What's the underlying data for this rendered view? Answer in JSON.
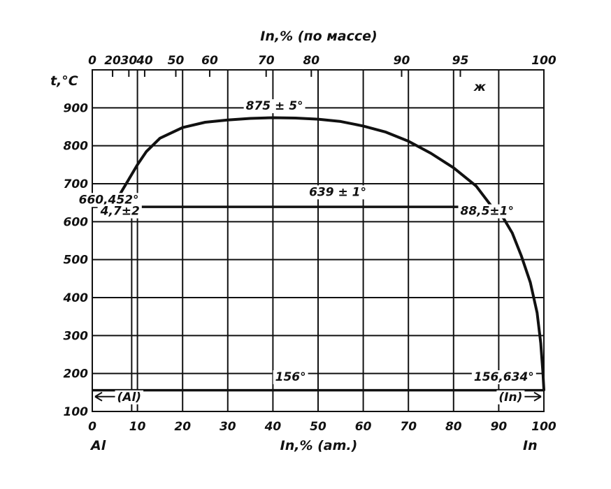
{
  "chart_data": {
    "type": "line",
    "title": "",
    "xlabel": "In,% (am.)",
    "x2label": "In,% (по массе)",
    "ylabel": "t,°C",
    "x_left_end_label": "Al",
    "x_right_end_label": "In",
    "xlim": [
      0,
      100
    ],
    "ylim": [
      100,
      1000
    ],
    "grid": true,
    "x_ticks": [
      "0",
      "10",
      "20",
      "30",
      "40",
      "50",
      "60",
      "70",
      "80",
      "90",
      "100"
    ],
    "y_ticks": [
      "100",
      "200",
      "300",
      "400",
      "500",
      "600",
      "700",
      "800",
      "900"
    ],
    "top_ticks": [
      {
        "label": "0",
        "at": 0
      },
      {
        "label": "20",
        "at": 4.5
      },
      {
        "label": "30",
        "at": 8.1
      },
      {
        "label": "40",
        "at": 11.6
      },
      {
        "label": "50",
        "at": 18.5
      },
      {
        "label": "60",
        "at": 26
      },
      {
        "label": "70",
        "at": 38.5
      },
      {
        "label": "80",
        "at": 48.5
      },
      {
        "label": "90",
        "at": 68.5
      },
      {
        "label": "95",
        "at": 81.5
      },
      {
        "label": "100",
        "at": 100
      }
    ],
    "series": [
      {
        "values_xy": [
          [
            0,
            660.452
          ],
          [
            4.7,
            639
          ]
        ]
      },
      {
        "values_xy": [
          [
            4.7,
            639
          ],
          [
            6,
            670
          ],
          [
            8,
            710
          ],
          [
            10,
            750
          ],
          [
            12,
            785
          ],
          [
            15,
            820
          ],
          [
            20,
            848
          ],
          [
            25,
            862
          ],
          [
            30,
            868
          ],
          [
            35,
            872
          ],
          [
            40,
            874
          ],
          [
            45,
            873
          ],
          [
            50,
            870
          ],
          [
            55,
            864
          ],
          [
            60,
            852
          ],
          [
            65,
            836
          ],
          [
            70,
            812
          ],
          [
            75,
            780
          ],
          [
            80,
            742
          ],
          [
            85,
            694
          ],
          [
            88.5,
            639
          ]
        ]
      },
      {
        "values_xy": [
          [
            88.5,
            639
          ],
          [
            91,
            610
          ],
          [
            93,
            570
          ],
          [
            95,
            510
          ],
          [
            97,
            440
          ],
          [
            98.5,
            360
          ],
          [
            99.3,
            280
          ],
          [
            99.8,
            200
          ],
          [
            100,
            156.634
          ]
        ]
      }
    ],
    "horizontal_lines": [
      {
        "y": 639,
        "x_from": 0,
        "x_to": 91
      },
      {
        "y": 156,
        "x_from": 0,
        "x_to": 100
      }
    ],
    "annotations": [
      {
        "text": "875 ± 5°",
        "x": 34,
        "y": 895
      },
      {
        "text": "639 ± 1°",
        "x": 48,
        "y": 668
      },
      {
        "text": "660,452°",
        "x": -3,
        "y": 648
      },
      {
        "text": "4,7±2",
        "x": 1.8,
        "y": 618
      },
      {
        "text": "88,5±1°",
        "x": 81.5,
        "y": 618
      },
      {
        "text": "156°",
        "x": 40.5,
        "y": 181
      },
      {
        "text": "156,634°",
        "x": 84.5,
        "y": 181
      },
      {
        "text": "(Al)",
        "x": 5.5,
        "y": 128
      },
      {
        "text": "(In)",
        "x": 90,
        "y": 128
      },
      {
        "text": "ж",
        "x": 84.5,
        "y": 945
      }
    ]
  }
}
